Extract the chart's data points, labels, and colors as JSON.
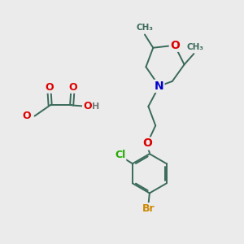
{
  "bg_color": "#ebebeb",
  "bond_color": "#3a6a5a",
  "atom_colors": {
    "O": "#dd0000",
    "N": "#0000cc",
    "Cl": "#22aa00",
    "Br": "#cc8800",
    "H": "#777777",
    "C": "#3a6a5a"
  },
  "figsize": [
    3.0,
    3.0
  ],
  "dpi": 100
}
